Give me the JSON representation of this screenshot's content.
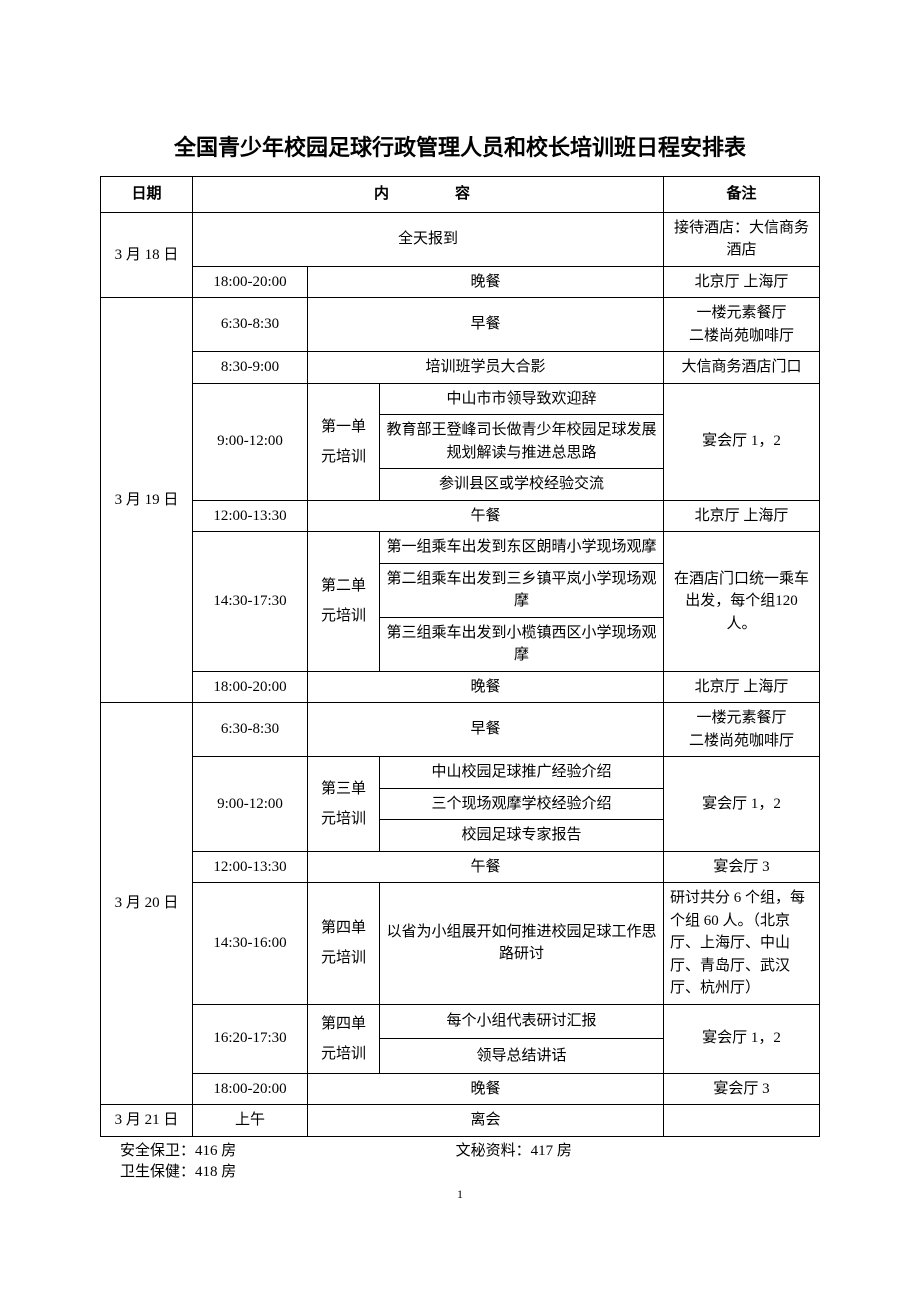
{
  "title": "全国青少年校园足球行政管理人员和校长培训班日程安排表",
  "header": {
    "date": "日期",
    "content": "内　　容",
    "note": "备注"
  },
  "d1": {
    "date": "3 月 18 日",
    "r1_content": "全天报到",
    "r1_note": "接待酒店：大信商务酒店",
    "r2_time": "18:00-20:00",
    "r2_content": "晚餐",
    "r2_note": "北京厅 上海厅"
  },
  "d2": {
    "date": "3 月 19 日",
    "r1_time": "6:30-8:30",
    "r1_content": "早餐",
    "r1_note": "一楼元素餐厅\n二楼尚苑咖啡厅",
    "r2_time": "8:30-9:00",
    "r2_content": "培训班学员大合影",
    "r2_note": "大信商务酒店门口",
    "r3_time": "9:00-12:00",
    "r3_unit": "第一单元培训",
    "r3_a": "中山市市领导致欢迎辞",
    "r3_b": "教育部王登峰司长做青少年校园足球发展规划解读与推进总思路",
    "r3_c": "参训县区或学校经验交流",
    "r3_note": "宴会厅 1，2",
    "r4_time": "12:00-13:30",
    "r4_content": "午餐",
    "r4_note": "北京厅 上海厅",
    "r5_time": "14:30-17:30",
    "r5_unit": "第二单元培训",
    "r5_a": "第一组乘车出发到东区朗晴小学现场观摩",
    "r5_b": "第二组乘车出发到三乡镇平岚小学现场观摩",
    "r5_c": "第三组乘车出发到小榄镇西区小学现场观摩",
    "r5_note": "在酒店门口统一乘车出发，每个组120 人。",
    "r6_time": "18:00-20:00",
    "r6_content": "晚餐",
    "r6_note": "北京厅 上海厅"
  },
  "d3": {
    "date": "3 月 20 日",
    "r1_time": "6:30-8:30",
    "r1_content": "早餐",
    "r1_note": "一楼元素餐厅\n二楼尚苑咖啡厅",
    "r2_time": "9:00-12:00",
    "r2_unit": "第三单元培训",
    "r2_a": "中山校园足球推广经验介绍",
    "r2_b": "三个现场观摩学校经验介绍",
    "r2_c": "校园足球专家报告",
    "r2_note": "宴会厅 1，2",
    "r3_time": "12:00-13:30",
    "r3_content": "午餐",
    "r3_note": "宴会厅 3",
    "r4_time": "14:30-16:00",
    "r4_unit": "第四单元培训",
    "r4_a": "以省为小组展开如何推进校园足球工作思路研讨",
    "r4_note": "研讨共分 6 个组，每个组 60 人。（北京厅、上海厅、中山厅、青岛厅、武汉厅、杭州厅）",
    "r5_time": "16:20-17:30",
    "r5_unit": "第四单元培训",
    "r5_a": "每个小组代表研讨汇报",
    "r5_b": "领导总结讲话",
    "r5_note": "宴会厅 1，2",
    "r6_time": "18:00-20:00",
    "r6_content": "晚餐",
    "r6_note": "宴会厅 3"
  },
  "d4": {
    "date": "3 月 21 日",
    "r1_time": "上午",
    "r1_content": "离会",
    "r1_note": ""
  },
  "footer": {
    "security": "安全保卫：416 房",
    "health": "卫生保健：418 房",
    "docs": "文秘资料：417 房"
  },
  "page_number": "1",
  "style": {
    "border_color": "#000000",
    "background": "#ffffff",
    "text_color": "#000000",
    "title_fontsize": 22,
    "body_fontsize": 15
  }
}
